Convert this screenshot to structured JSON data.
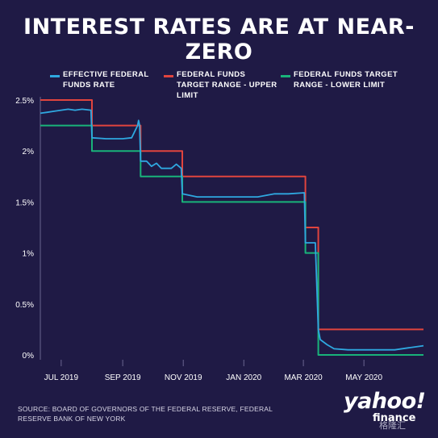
{
  "chart_data": {
    "type": "line",
    "title": "INTEREST RATES ARE AT NEAR-ZERO",
    "ylim": [
      0,
      2.5
    ],
    "y_ticks": [
      "0%",
      "0.5%",
      "1%",
      "1.5%",
      "2%",
      "2.5%"
    ],
    "x_ticks": [
      "JUL 2019",
      "SEP 2019",
      "NOV 2019",
      "JAN 2020",
      "MAR 2020",
      "MAY 2020"
    ],
    "x_range": [
      "2019-06-10",
      "2020-06-30"
    ],
    "grid": false,
    "legend_position": "top",
    "series": [
      {
        "name": "EFFECTIVE FEDERAL FUNDS RATE",
        "color": "#2fa8e0",
        "points": [
          [
            "2019-06-10",
            2.37
          ],
          [
            "2019-06-17",
            2.38
          ],
          [
            "2019-06-24",
            2.39
          ],
          [
            "2019-07-01",
            2.4
          ],
          [
            "2019-07-08",
            2.41
          ],
          [
            "2019-07-15",
            2.4
          ],
          [
            "2019-07-22",
            2.41
          ],
          [
            "2019-07-31",
            2.4
          ],
          [
            "2019-08-01",
            2.13
          ],
          [
            "2019-08-15",
            2.12
          ],
          [
            "2019-09-01",
            2.12
          ],
          [
            "2019-09-10",
            2.13
          ],
          [
            "2019-09-16",
            2.25
          ],
          [
            "2019-09-17",
            2.3
          ],
          [
            "2019-09-18",
            2.25
          ],
          [
            "2019-09-19",
            1.9
          ],
          [
            "2019-09-25",
            1.9
          ],
          [
            "2019-09-30",
            1.85
          ],
          [
            "2019-10-05",
            1.88
          ],
          [
            "2019-10-10",
            1.83
          ],
          [
            "2019-10-20",
            1.83
          ],
          [
            "2019-10-25",
            1.87
          ],
          [
            "2019-10-30",
            1.83
          ],
          [
            "2019-10-31",
            1.58
          ],
          [
            "2019-11-15",
            1.55
          ],
          [
            "2019-12-01",
            1.55
          ],
          [
            "2019-12-15",
            1.55
          ],
          [
            "2020-01-01",
            1.55
          ],
          [
            "2020-01-15",
            1.55
          ],
          [
            "2020-02-01",
            1.58
          ],
          [
            "2020-02-15",
            1.58
          ],
          [
            "2020-03-02",
            1.59
          ],
          [
            "2020-03-03",
            1.1
          ],
          [
            "2020-03-10",
            1.1
          ],
          [
            "2020-03-13",
            1.1
          ],
          [
            "2020-03-16",
            0.25
          ],
          [
            "2020-03-18",
            0.15
          ],
          [
            "2020-03-25",
            0.1
          ],
          [
            "2020-04-01",
            0.06
          ],
          [
            "2020-04-15",
            0.05
          ],
          [
            "2020-05-01",
            0.05
          ],
          [
            "2020-05-15",
            0.05
          ],
          [
            "2020-06-01",
            0.05
          ],
          [
            "2020-06-15",
            0.07
          ],
          [
            "2020-06-30",
            0.09
          ]
        ]
      },
      {
        "name": "FEDERAL FUNDS TARGET RANGE - UPPER LIMIT",
        "color": "#e0443e",
        "points": [
          [
            "2019-06-10",
            2.5
          ],
          [
            "2019-08-01",
            2.5
          ],
          [
            "2019-08-01",
            2.25
          ],
          [
            "2019-09-19",
            2.25
          ],
          [
            "2019-09-19",
            2.0
          ],
          [
            "2019-10-31",
            2.0
          ],
          [
            "2019-10-31",
            1.75
          ],
          [
            "2020-03-03",
            1.75
          ],
          [
            "2020-03-03",
            1.25
          ],
          [
            "2020-03-16",
            1.25
          ],
          [
            "2020-03-16",
            0.25
          ],
          [
            "2020-06-30",
            0.25
          ]
        ]
      },
      {
        "name": "FEDERAL FUNDS TARGET RANGE - LOWER LIMIT",
        "color": "#19b37a",
        "points": [
          [
            "2019-06-10",
            2.25
          ],
          [
            "2019-08-01",
            2.25
          ],
          [
            "2019-08-01",
            2.0
          ],
          [
            "2019-09-19",
            2.0
          ],
          [
            "2019-09-19",
            1.75
          ],
          [
            "2019-10-31",
            1.75
          ],
          [
            "2019-10-31",
            1.5
          ],
          [
            "2020-03-03",
            1.5
          ],
          [
            "2020-03-03",
            1.0
          ],
          [
            "2020-03-16",
            1.0
          ],
          [
            "2020-03-16",
            0.0
          ],
          [
            "2020-06-30",
            0.0
          ]
        ]
      }
    ]
  },
  "legend": [
    {
      "label": "EFFECTIVE FEDERAL FUNDS RATE",
      "color": "#2fa8e0"
    },
    {
      "label": "FEDERAL FUNDS TARGET RANGE - UPPER LIMIT",
      "color": "#e0443e"
    },
    {
      "label": "FEDERAL FUNDS TARGET RANGE - LOWER LIMIT",
      "color": "#19b37a"
    }
  ],
  "source": "SOURCE: BOARD OF GOVERNORS OF THE FEDERAL RESERVE, FEDERAL RESERVE BANK OF NEW YORK",
  "logo": {
    "brand": "yahoo!",
    "sub": "finance",
    "watermark": "格隆汇"
  },
  "colors": {
    "background": "#1f1a45",
    "axis": "#ffffff"
  }
}
